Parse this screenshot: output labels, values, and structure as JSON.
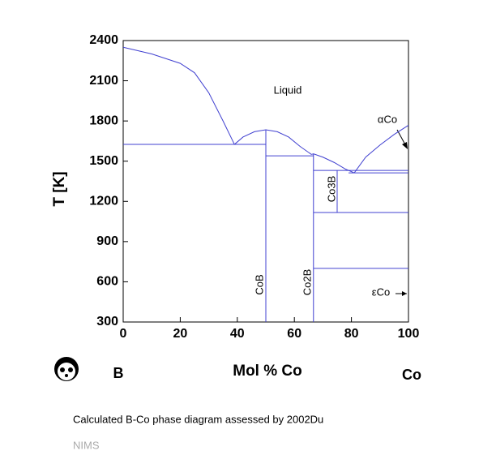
{
  "chart_data": {
    "type": "line",
    "x_label": "Mol % Co",
    "y_label": "T [K]",
    "xlim": [
      0,
      100
    ],
    "xticks": [
      0,
      20,
      40,
      60,
      80,
      100
    ],
    "ylim": [
      300,
      2400
    ],
    "yticks": [
      300,
      600,
      900,
      1200,
      1500,
      1800,
      2100,
      2400
    ],
    "series": [
      {
        "color": "#4040d0",
        "x": [
          0,
          10,
          20,
          25,
          30,
          35,
          39
        ],
        "values": [
          2350,
          2300,
          2230,
          2160,
          2010,
          1800,
          1625
        ]
      },
      {
        "color": "#4040d0",
        "x": [
          39,
          42,
          46,
          50,
          54,
          58,
          62,
          66
        ],
        "values": [
          1625,
          1680,
          1720,
          1734,
          1720,
          1680,
          1610,
          1550
        ]
      },
      {
        "color": "#4040d0",
        "x": [
          66,
          66.7,
          70,
          74,
          78,
          81
        ],
        "values": [
          1550,
          1555,
          1530,
          1490,
          1440,
          1413
        ]
      },
      {
        "color": "#4040d0",
        "x": [
          81,
          85,
          90,
          95,
          100
        ],
        "values": [
          1413,
          1530,
          1620,
          1700,
          1768
        ]
      },
      {
        "color": "#4040d0",
        "x": [
          0,
          50
        ],
        "values": [
          1625,
          1625
        ]
      },
      {
        "color": "#4040d0",
        "x": [
          50,
          50
        ],
        "values": [
          1734,
          300
        ]
      },
      {
        "color": "#4040d0",
        "x": [
          50,
          66.7
        ],
        "values": [
          1540,
          1540
        ]
      },
      {
        "color": "#4040d0",
        "x": [
          66.7,
          66.7
        ],
        "values": [
          1555,
          300
        ]
      },
      {
        "color": "#4040d0",
        "x": [
          66.7,
          100
        ],
        "values": [
          1431,
          1431
        ]
      },
      {
        "color": "#4040d0",
        "x": [
          79,
          100
        ],
        "values": [
          1413,
          1413
        ]
      },
      {
        "color": "#4040d0",
        "x": [
          75,
          75
        ],
        "values": [
          1431,
          1117
        ]
      },
      {
        "color": "#4040d0",
        "x": [
          66.7,
          100
        ],
        "values": [
          1117,
          1117
        ]
      },
      {
        "color": "#4040d0",
        "x": [
          66.7,
          100
        ],
        "values": [
          700,
          700
        ]
      }
    ],
    "annotations": [
      "Liquid",
      "αCo",
      "Co3B",
      "CoB",
      "Co2B",
      "εCo"
    ],
    "left_element": "B",
    "right_element": "Co",
    "caption": "Calculated B-Co phase diagram assessed by 2002Du",
    "source": "NIMS"
  }
}
